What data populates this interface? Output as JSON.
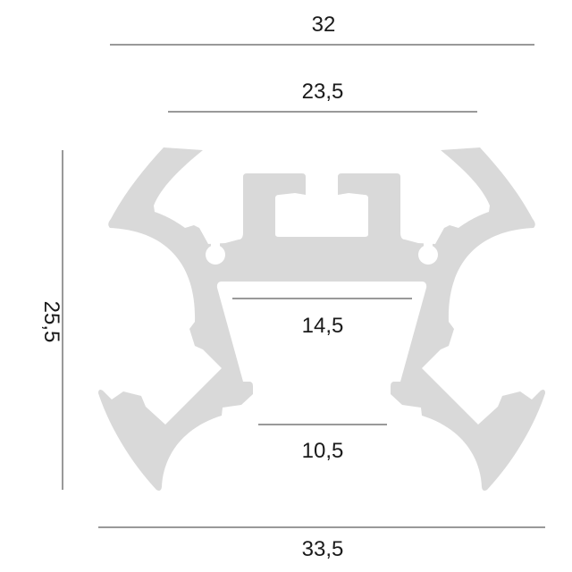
{
  "colors": {
    "profile_fill": "#d9d9d9",
    "dimension_line": "#333333",
    "text": "#1a1a1a"
  },
  "dimensions": {
    "top_overall_width": "32",
    "top_inner_width": "23,5",
    "height": "25,5",
    "inner_top_width": "14,5",
    "inner_bottom_width": "10,5",
    "bottom_overall_width": "33,5"
  }
}
